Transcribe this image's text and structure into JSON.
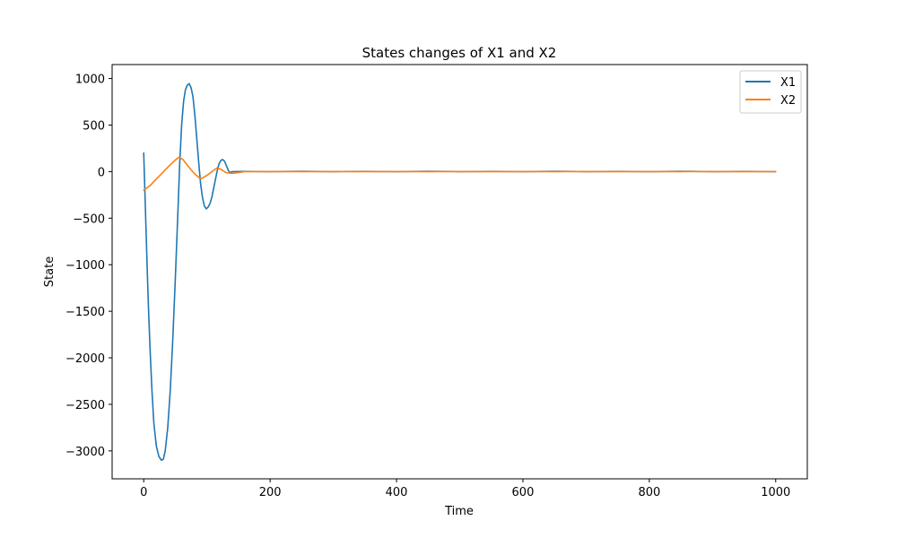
{
  "chart_data": {
    "type": "line",
    "title": "States changes of X1 and X2",
    "xlabel": "Time",
    "ylabel": "State",
    "xlim": [
      -50,
      1050
    ],
    "ylim": [
      -3300,
      1150
    ],
    "xticks": [
      0,
      200,
      400,
      600,
      800,
      1000
    ],
    "xtick_labels": [
      "0",
      "200",
      "400",
      "600",
      "800",
      "1000"
    ],
    "yticks": [
      1000,
      500,
      0,
      -500,
      -1000,
      -1500,
      -2000,
      -2500,
      -3000
    ],
    "ytick_labels": [
      "1000",
      "500",
      "0",
      "−500",
      "−1000",
      "−1500",
      "−2000",
      "−2500",
      "−3000"
    ],
    "grid": false,
    "legend_position": "top-right",
    "series": [
      {
        "name": "X1",
        "color": "#1f77b4",
        "x": [
          0,
          2,
          4,
          6,
          8,
          10,
          13,
          16,
          20,
          24,
          28,
          31,
          34,
          38,
          42,
          46,
          50,
          54,
          57,
          60,
          63,
          66,
          69,
          72,
          75,
          78,
          81,
          84,
          87,
          90,
          93,
          96,
          99,
          102,
          105,
          108,
          110,
          113,
          116,
          119,
          122,
          125,
          128,
          131,
          134,
          137,
          140,
          160,
          200,
          250,
          300,
          350,
          400,
          450,
          500,
          550,
          600,
          650,
          700,
          750,
          800,
          850,
          900,
          950,
          1000
        ],
        "y": [
          200,
          -250,
          -700,
          -1150,
          -1550,
          -1900,
          -2350,
          -2700,
          -2950,
          -3060,
          -3100,
          -3090,
          -3000,
          -2750,
          -2350,
          -1800,
          -1150,
          -450,
          100,
          500,
          750,
          880,
          930,
          945,
          900,
          800,
          600,
          350,
          100,
          -130,
          -280,
          -370,
          -400,
          -380,
          -340,
          -270,
          -200,
          -100,
          0,
          80,
          120,
          130,
          110,
          60,
          10,
          -10,
          0,
          2,
          0,
          3,
          0,
          2,
          0,
          3,
          0,
          2,
          0,
          3,
          0,
          2,
          0,
          3,
          0,
          2,
          0
        ]
      },
      {
        "name": "X2",
        "color": "#ff7f0e",
        "x": [
          0,
          10,
          20,
          30,
          40,
          50,
          56,
          62,
          70,
          80,
          90,
          100,
          110,
          116,
          122,
          130,
          140,
          160,
          200,
          250,
          300,
          350,
          400,
          450,
          500,
          550,
          600,
          650,
          700,
          750,
          800,
          850,
          900,
          950,
          1000
        ],
        "y": [
          -200,
          -150,
          -80,
          -10,
          60,
          125,
          155,
          130,
          60,
          -20,
          -80,
          -40,
          10,
          40,
          25,
          -10,
          -20,
          0,
          1,
          0,
          1,
          0,
          1,
          0,
          1,
          0,
          1,
          0,
          1,
          0,
          1,
          0,
          1,
          0,
          1
        ]
      }
    ]
  }
}
